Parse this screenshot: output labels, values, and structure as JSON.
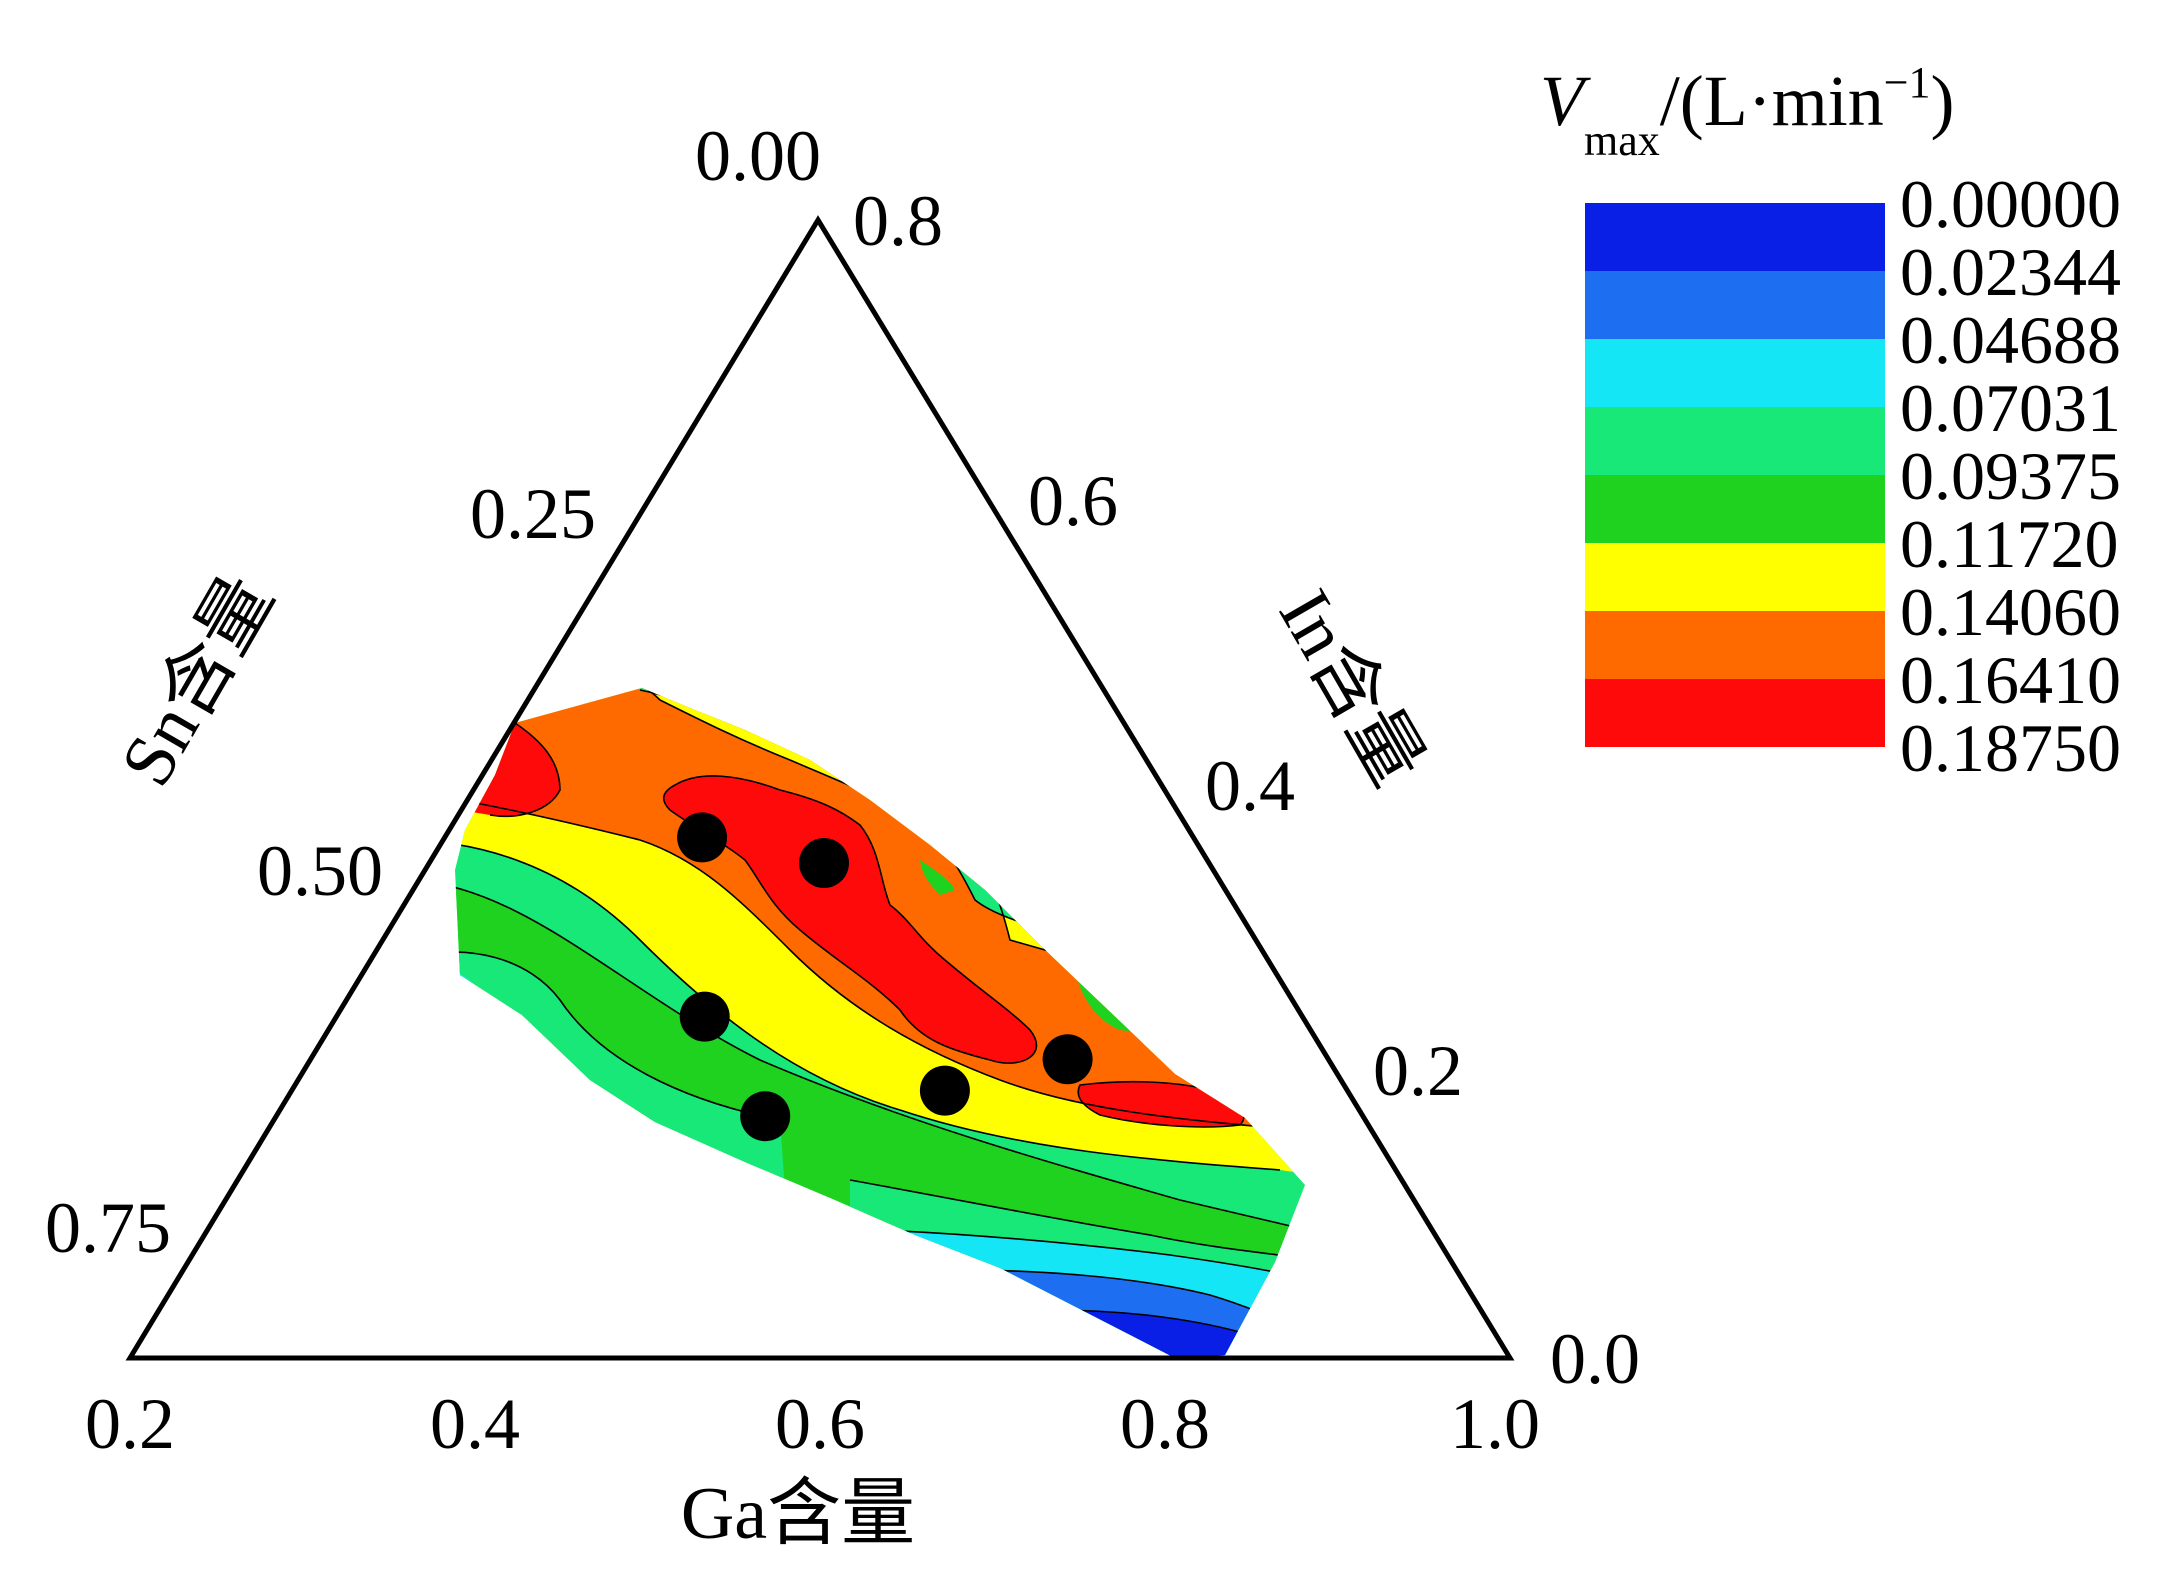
{
  "chart_data": {
    "type": "ternary-contour",
    "axes": {
      "bottom": {
        "label": "Ga含量",
        "ticks": [
          "0.2",
          "0.4",
          "0.6",
          "0.8",
          "1.0"
        ]
      },
      "left": {
        "label": "Sn含量",
        "ticks": [
          "0.00",
          "0.25",
          "0.50",
          "0.75"
        ]
      },
      "right": {
        "label": "In含量",
        "ticks": [
          "0.8",
          "0.6",
          "0.4",
          "0.2",
          "0.0"
        ]
      }
    },
    "legend": {
      "title_main": "V",
      "title_sub": "max",
      "title_rest": "/(L·min",
      "title_sup": "−1",
      "title_close": ")",
      "levels": [
        "0.00000",
        "0.02344",
        "0.04688",
        "0.07031",
        "0.09375",
        "0.11720",
        "0.14060",
        "0.16410",
        "0.18750"
      ],
      "colors": [
        "#0a1fe6",
        "#1e6ef2",
        "#14e6f5",
        "#18e878",
        "#1fd21f",
        "#ffff00",
        "#ff6a00",
        "#ff0a0a"
      ],
      "placement": "top-right"
    },
    "data_points_ga_in": [
      [
        0.475,
        0.366
      ],
      [
        0.605,
        0.348
      ],
      [
        0.505,
        0.24
      ],
      [
        0.56,
        0.17
      ],
      [
        0.695,
        0.188
      ],
      [
        0.795,
        0.21
      ]
    ],
    "marker_color": "#000000"
  }
}
